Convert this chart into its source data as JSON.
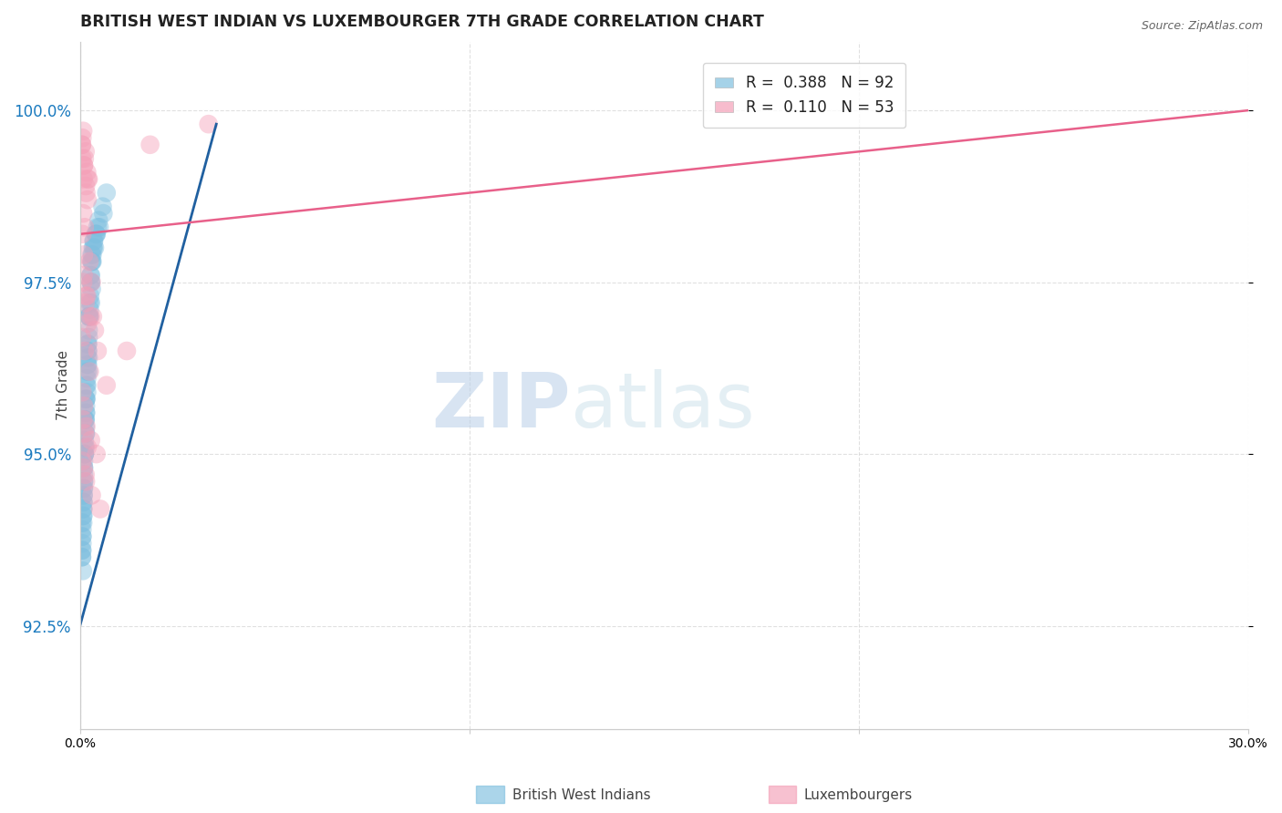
{
  "title": "BRITISH WEST INDIAN VS LUXEMBOURGER 7TH GRADE CORRELATION CHART",
  "source": "Source: ZipAtlas.com",
  "xlabel_left": "British West Indians",
  "xlabel_right": "Luxembourgers",
  "ylabel": "7th Grade",
  "xlim": [
    0.0,
    30.0
  ],
  "ylim": [
    91.0,
    101.0
  ],
  "yticks_right": [
    92.5,
    95.0,
    97.5,
    100.0
  ],
  "ytick_labels_right": [
    "92.5%",
    "95.0%",
    "97.5%",
    "100.0%"
  ],
  "xticks": [
    0.0,
    10.0,
    20.0,
    30.0
  ],
  "blue_R": 0.388,
  "blue_N": 92,
  "pink_R": 0.11,
  "pink_N": 53,
  "blue_color": "#7fbfdf",
  "pink_color": "#f4a0b8",
  "blue_line_color": "#2060a0",
  "pink_line_color": "#e8608a",
  "blue_points_x": [
    0.05,
    0.08,
    0.1,
    0.12,
    0.15,
    0.18,
    0.2,
    0.22,
    0.25,
    0.28,
    0.05,
    0.08,
    0.12,
    0.15,
    0.18,
    0.22,
    0.25,
    0.1,
    0.14,
    0.2,
    0.3,
    0.35,
    0.4,
    0.32,
    0.28,
    0.06,
    0.1,
    0.15,
    0.22,
    0.3,
    0.08,
    0.14,
    0.2,
    0.1,
    0.12,
    0.18,
    0.24,
    0.35,
    0.06,
    0.28,
    0.5,
    0.6,
    0.42,
    0.48,
    0.09,
    0.15,
    0.22,
    0.3,
    0.05,
    0.1,
    0.16,
    0.08,
    0.12,
    0.2,
    0.32,
    0.42,
    0.14,
    0.24,
    0.58,
    0.68,
    0.06,
    0.09,
    0.18,
    0.28,
    0.38,
    0.08,
    0.12,
    0.19,
    0.1,
    0.15,
    0.05,
    0.14,
    0.22,
    0.3,
    0.09,
    0.16,
    0.06,
    0.12,
    0.26,
    0.36,
    0.08,
    0.15,
    0.2,
    0.1,
    0.45,
    0.09,
    0.14,
    0.19,
    0.06,
    0.27,
    0.33,
    0.07
  ],
  "blue_points_y": [
    94.0,
    94.3,
    94.8,
    95.5,
    95.8,
    96.2,
    96.5,
    97.0,
    97.2,
    97.5,
    93.5,
    94.1,
    95.0,
    95.3,
    96.0,
    96.4,
    97.1,
    94.5,
    95.1,
    96.3,
    97.8,
    98.0,
    98.2,
    97.9,
    97.6,
    93.8,
    94.9,
    95.6,
    96.7,
    97.9,
    94.2,
    95.4,
    96.6,
    94.7,
    95.0,
    96.1,
    97.0,
    98.1,
    93.9,
    97.5,
    98.3,
    98.5,
    98.2,
    98.4,
    94.3,
    95.7,
    96.8,
    97.8,
    93.6,
    94.6,
    95.8,
    94.0,
    95.2,
    96.5,
    97.8,
    98.2,
    95.5,
    97.0,
    98.6,
    98.8,
    93.7,
    94.4,
    95.9,
    97.2,
    98.0,
    94.2,
    95.1,
    96.4,
    94.8,
    95.6,
    93.5,
    95.3,
    96.2,
    97.4,
    94.5,
    96.0,
    93.8,
    95.0,
    97.3,
    98.1,
    94.1,
    95.8,
    96.6,
    94.6,
    98.3,
    94.4,
    95.5,
    96.3,
    93.6,
    97.6,
    98.0,
    93.3
  ],
  "pink_points_x": [
    0.05,
    0.1,
    0.15,
    0.22,
    0.06,
    0.12,
    0.18,
    0.08,
    0.14,
    0.2,
    0.05,
    0.1,
    0.16,
    0.06,
    0.09,
    0.19,
    0.08,
    0.12,
    0.24,
    0.3,
    0.06,
    0.1,
    0.15,
    0.27,
    0.38,
    0.45,
    0.08,
    0.14,
    0.2,
    0.09,
    0.18,
    0.33,
    0.05,
    0.12,
    0.25,
    0.68,
    1.8,
    1.2,
    0.06,
    0.1,
    0.16,
    0.28,
    0.42,
    0.08,
    0.12,
    0.19,
    0.09,
    0.15,
    0.3,
    0.52,
    0.06,
    0.14,
    3.3
  ],
  "pink_points_y": [
    99.5,
    99.2,
    98.9,
    99.0,
    99.6,
    99.3,
    99.1,
    99.7,
    99.4,
    99.0,
    99.5,
    99.2,
    98.8,
    99.3,
    99.0,
    98.7,
    98.5,
    98.3,
    97.8,
    97.5,
    98.2,
    97.9,
    97.3,
    97.0,
    96.8,
    96.5,
    97.5,
    97.2,
    96.9,
    97.6,
    97.3,
    97.0,
    96.7,
    96.5,
    96.2,
    96.0,
    99.5,
    96.5,
    95.9,
    95.7,
    95.4,
    95.2,
    95.0,
    95.5,
    95.3,
    95.1,
    94.8,
    94.6,
    94.4,
    94.2,
    94.9,
    94.7,
    99.8
  ],
  "watermark_zip": "ZIP",
  "watermark_atlas": "atlas",
  "background_color": "#ffffff",
  "grid_color": "#cccccc",
  "grid_style": "--",
  "legend_R_color": "#1a7abf",
  "legend_N_color": "#cc2255",
  "blue_line_x": [
    0.0,
    3.5
  ],
  "blue_line_y": [
    92.5,
    99.8
  ],
  "pink_line_x": [
    0.0,
    30.0
  ],
  "pink_line_y": [
    98.2,
    100.0
  ]
}
